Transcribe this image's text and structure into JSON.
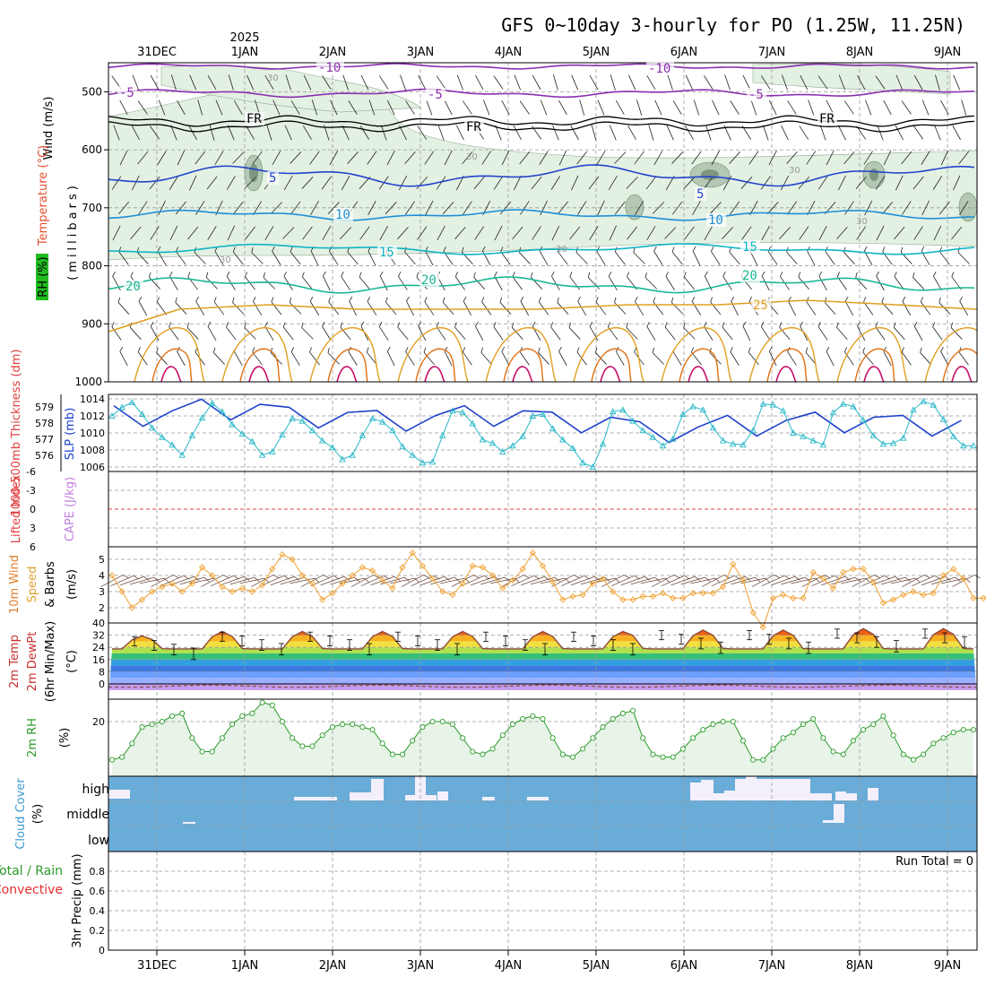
{
  "title": "GFS 0~10day 3-hourly for PO (1.25W, 11.25N)",
  "year_label": "2025",
  "colors": {
    "rh_fill": "#e3f1e3",
    "rh_fill2": "#b4c8b4",
    "rh_fill3": "#7e967e",
    "isotherm_m10": "#8a2fb0",
    "isotherm_0": "#000000",
    "isotherm_5": "#2244cc",
    "isotherm_10": "#1e8fd8",
    "isotherm_15": "#10b4c4",
    "isotherm_20": "#18b894",
    "isotherm_25": "#e0a020",
    "isotherm_30": "#e07010",
    "isotherm_35": "#c8106a",
    "thickness": "#1e40cc",
    "slp": "#28b8c8",
    "lifted_index": "#e04040",
    "wind_speed": "#f0a030",
    "cloud": "#6aacd8",
    "rh2m": "#2a9a2a",
    "rh2m_fill": "#e8f4e8",
    "dewpt_fill": "#c49cf0"
  },
  "upper_panel": {
    "ylabel_wind": "Wind (m/s)",
    "ylabel_temp": "Temperature (°C)",
    "ylabel_rh": "RH (%)",
    "ylabel_pressure": "(millibars)",
    "yticks": [
      "500",
      "600",
      "700",
      "800",
      "900",
      "1000"
    ],
    "isotherm_labels": [
      "-10",
      "-10",
      "-5",
      "-5",
      "-5",
      "FR",
      "FR",
      "FR",
      "5",
      "5",
      "10",
      "10",
      "15",
      "15",
      "20",
      "20",
      "20",
      "25"
    ],
    "rh_labels": [
      "30",
      "30",
      "30",
      "30",
      "30",
      "30"
    ]
  },
  "slp_panel": {
    "ylabel_left": "1000-500mb Thickness (dm)",
    "ylabel_right": "SLP (mb)",
    "left_ticks": [
      "579",
      "578",
      "577",
      "576"
    ],
    "right_ticks": [
      "1014",
      "1012",
      "1010",
      "1008",
      "1006"
    ]
  },
  "li_panel": {
    "ylabel_left": "Lifted Index",
    "ylabel_right": "CAPE (J/kg)",
    "ticks": [
      "-6",
      "-3",
      "0",
      "3",
      "6"
    ]
  },
  "wind_panel": {
    "ylabel_1": "10m Wind",
    "ylabel_2": "Speed",
    "ylabel_3": "& Barbs",
    "ylabel_4": "(m/s)",
    "ticks": [
      "5",
      "4",
      "3",
      "2"
    ]
  },
  "temp_panel": {
    "ylabel_1": "2m Temp",
    "ylabel_2": "2m DewPt",
    "ylabel_3": "(6hr Min/Max)",
    "ylabel_4": "(°C)",
    "ticks": [
      "40",
      "32",
      "24",
      "16",
      "8",
      "0"
    ]
  },
  "rh_panel": {
    "ylabel_1": "2m RH",
    "ylabel_2": "(%)",
    "ticks": [
      "20"
    ]
  },
  "cloud_panel": {
    "ylabel_1": "Cloud Cover",
    "ylabel_2": "(%)",
    "levels": [
      "high",
      "middle",
      "low"
    ]
  },
  "precip_panel": {
    "ylabel_1": "Total / Rain",
    "ylabel_2": "Convective",
    "ylabel_3": "3hr Precip (mm)",
    "ticks": [
      "0.8",
      "0.6",
      "0.4",
      "0.2",
      "0"
    ],
    "run_total": "Run Total = 0"
  },
  "chart_data": {
    "type": "line",
    "x_dates": [
      "31DEC",
      "1JAN",
      "2JAN",
      "3JAN",
      "4JAN",
      "5JAN",
      "6JAN",
      "7JAN",
      "8JAN",
      "9JAN"
    ],
    "thickness_dm_daily": [
      578.6,
      579.0,
      578.5,
      578.3,
      578.6,
      578.2,
      577.6,
      578.0,
      578.2,
      578.0
    ],
    "slp_mb_3h": [
      1012.0,
      1013.0,
      1013.6,
      1012.2,
      1010.6,
      1009.5,
      1008.6,
      1007.4,
      1009.7,
      1011.8,
      1013.5,
      1012.5,
      1011.0,
      1009.9,
      1009.0,
      1007.4,
      1007.8,
      1009.8,
      1011.7,
      1011.4,
      1010.3,
      1009.1,
      1008.3,
      1006.9,
      1007.4,
      1009.7,
      1011.7,
      1011.3,
      1010.3,
      1008.4,
      1007.4,
      1006.5,
      1006.6,
      1009.7,
      1012.6,
      1012.4,
      1011.1,
      1009.2,
      1008.8,
      1007.8,
      1008.5,
      1009.6,
      1012.0,
      1012.2,
      1010.5,
      1009.2,
      1008.2,
      1006.5,
      1006.0,
      1008.7,
      1012.5,
      1012.7,
      1011.4,
      1010.3,
      1009.5,
      1008.5,
      1009.3,
      1012.2,
      1013.1,
      1012.7,
      1010.6,
      1009.1,
      1008.7,
      1008.6,
      1010.3,
      1013.4,
      1013.3,
      1012.6,
      1010.0,
      1009.6,
      1009.1,
      1008.6,
      1012.4,
      1013.4,
      1013.1,
      1011.5,
      1009.7,
      1008.7,
      1008.8,
      1009.4,
      1012.7,
      1013.7,
      1013.3,
      1011.6,
      1009.6,
      1008.5,
      1008.5
    ],
    "wind_speed_ms_3h": [
      4.0,
      3.0,
      2.0,
      2.5,
      3.0,
      3.3,
      3.5,
      3.0,
      3.5,
      4.5,
      4.0,
      3.3,
      3.0,
      3.2,
      3.0,
      3.4,
      4.4,
      5.3,
      5.0,
      4.0,
      3.5,
      2.5,
      2.9,
      3.5,
      4.0,
      4.5,
      4.3,
      3.7,
      3.2,
      4.5,
      5.4,
      4.6,
      3.8,
      3.0,
      2.8,
      3.5,
      4.6,
      4.5,
      4.0,
      3.2,
      3.7,
      4.4,
      5.4,
      4.6,
      3.6,
      2.5,
      2.7,
      2.8,
      3.5,
      3.8,
      3.0,
      2.5,
      2.5,
      2.7,
      2.7,
      2.9,
      2.6,
      2.6,
      2.9,
      2.9,
      2.9,
      3.3,
      4.7,
      3.7,
      1.7,
      0.8,
      2.6,
      2.8,
      2.6,
      2.6,
      4.2,
      3.8,
      3.2,
      4.2,
      4.4,
      4.4,
      3.6,
      2.3,
      2.5,
      2.8,
      3.0,
      2.8,
      2.9,
      4.0,
      4.4,
      3.8,
      2.6,
      2.6,
      2.8
    ],
    "temp_max_c_daily": [
      31,
      34,
      34,
      34,
      34,
      34,
      35,
      35,
      36,
      36
    ],
    "temp_min_c_daily": [
      22,
      22,
      22,
      22,
      22,
      22,
      22,
      22,
      22,
      22
    ],
    "dewpoint_c": [
      -1,
      -2,
      -1,
      -1,
      -1,
      -1,
      -1,
      -1,
      -1,
      -2
    ],
    "rh2m_pct_3h": [
      6,
      7,
      12,
      18,
      19,
      20,
      22,
      23,
      14,
      9,
      9,
      14,
      19,
      22,
      23,
      27,
      26,
      20,
      14,
      11,
      11,
      15,
      18,
      19,
      19,
      18,
      17,
      12,
      8,
      8,
      13,
      18,
      20,
      20,
      19,
      14,
      9,
      8,
      10,
      15,
      19,
      21,
      22,
      21,
      14,
      8,
      7,
      10,
      14,
      18,
      21,
      23,
      24,
      14,
      8,
      7,
      7,
      10,
      14,
      17,
      19,
      20,
      20,
      13,
      6,
      6,
      10,
      14,
      16,
      19,
      21,
      14,
      9,
      8,
      13,
      17,
      19,
      22,
      15,
      8,
      6,
      8,
      12,
      14,
      16,
      17,
      17
    ],
    "precip_run_total_mm": 0,
    "cape_jkg": 0,
    "lifted_index_ref": 0
  }
}
